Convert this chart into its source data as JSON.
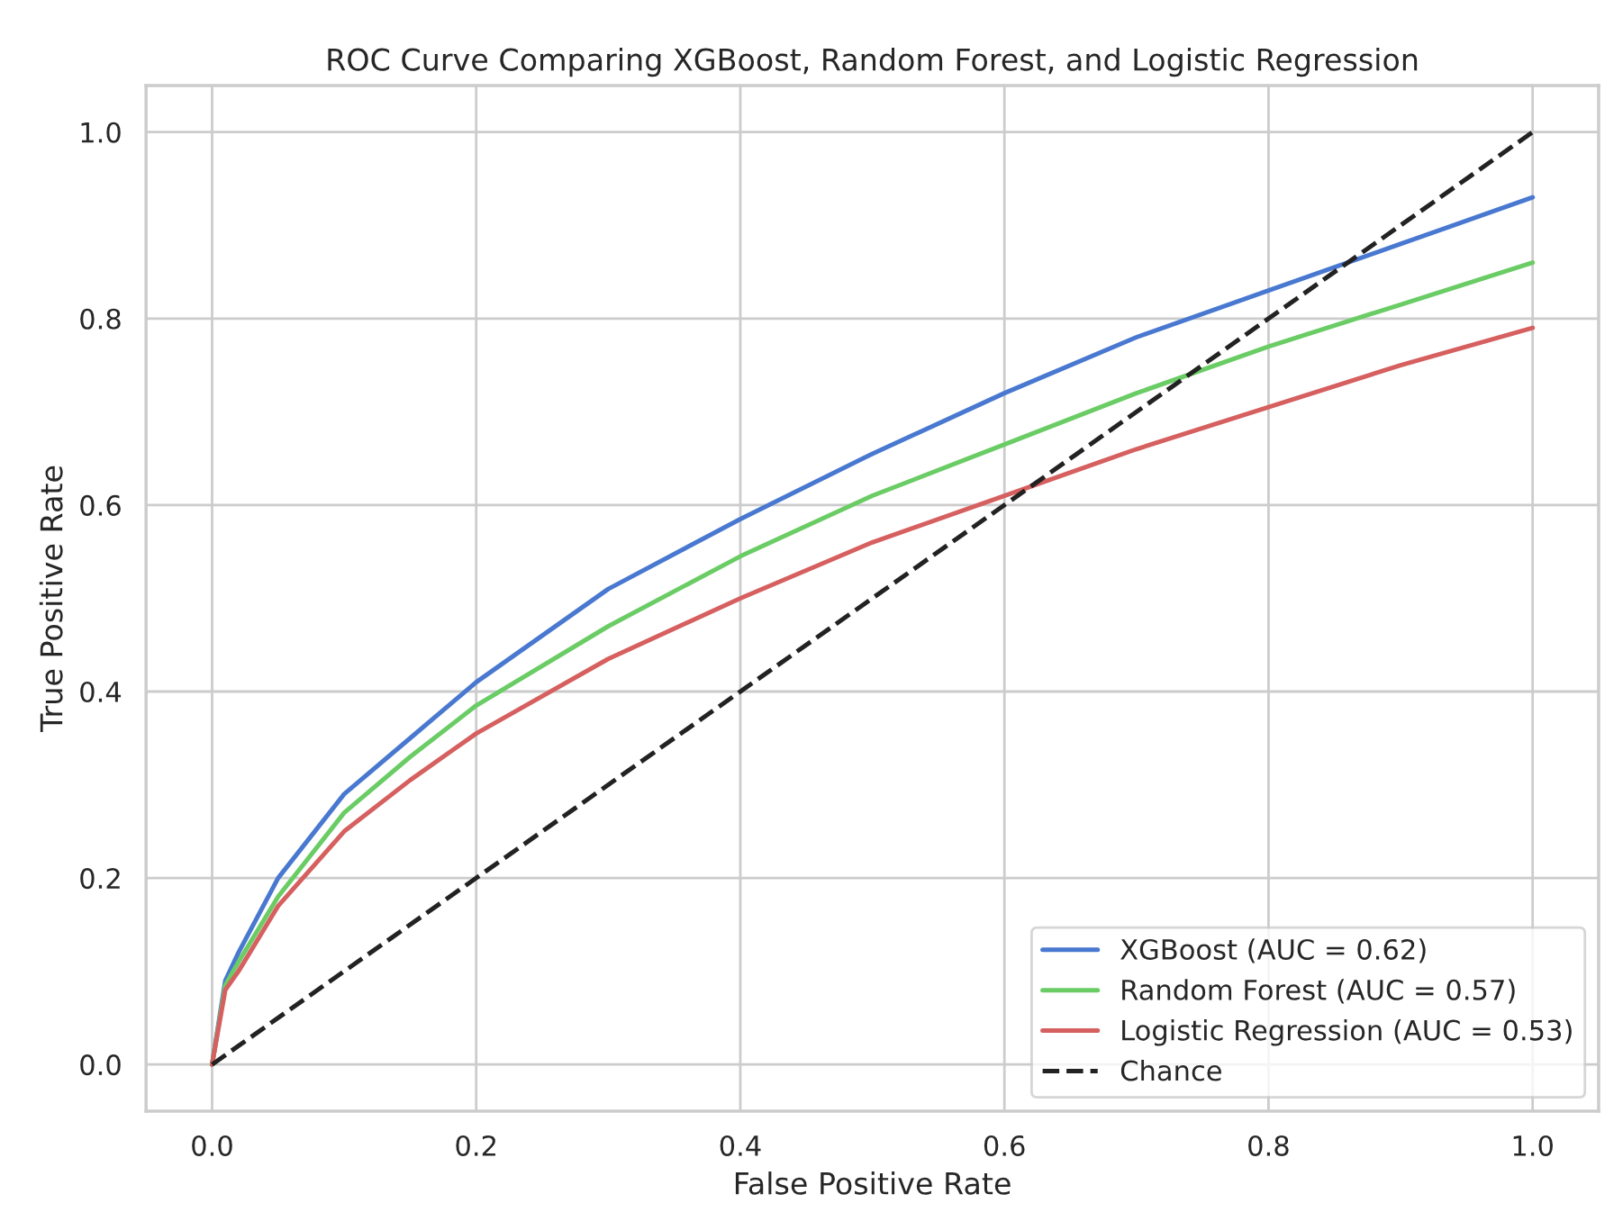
{
  "chart_data": {
    "type": "line",
    "title": "ROC Curve Comparing XGBoost, Random Forest, and Logistic Regression",
    "xlabel": "False Positive Rate",
    "ylabel": "True Positive Rate",
    "x": [
      0,
      0.01,
      0.02,
      0.05,
      0.1,
      0.15,
      0.2,
      0.3,
      0.4,
      0.5,
      0.6,
      0.7,
      0.8,
      0.9,
      1.0
    ],
    "series": [
      {
        "name": "XGBoost (AUC = 0.62)",
        "color": "#4878d0",
        "values": [
          0,
          0.09,
          0.12,
          0.2,
          0.29,
          0.35,
          0.41,
          0.51,
          0.585,
          0.655,
          0.72,
          0.78,
          0.83,
          0.88,
          0.93
        ]
      },
      {
        "name": "Random Forest (AUC = 0.57)",
        "color": "#6acc64",
        "values": [
          0,
          0.085,
          0.11,
          0.18,
          0.27,
          0.33,
          0.385,
          0.47,
          0.545,
          0.61,
          0.665,
          0.72,
          0.77,
          0.815,
          0.86
        ]
      },
      {
        "name": "Logistic Regression (AUC = 0.53)",
        "color": "#d65f5f",
        "values": [
          0,
          0.08,
          0.1,
          0.17,
          0.25,
          0.305,
          0.355,
          0.435,
          0.5,
          0.56,
          0.61,
          0.66,
          0.705,
          0.75,
          0.79
        ]
      },
      {
        "name": "Chance",
        "color": "#222222",
        "line_style": "dashed",
        "x": [
          0,
          1
        ],
        "values": [
          0,
          1
        ]
      }
    ],
    "xlim": [
      -0.05,
      1.05
    ],
    "ylim": [
      -0.05,
      1.05
    ],
    "xticks": [
      {
        "value": 0,
        "label": "0.0"
      },
      0.2,
      0.4,
      0.6,
      0.8,
      {
        "value": 1,
        "label": "1.0"
      }
    ],
    "yticks": [
      {
        "value": 0,
        "label": "0.0"
      },
      0.2,
      0.4,
      0.6,
      0.8,
      {
        "value": 1,
        "label": "1.0"
      }
    ],
    "grid": true,
    "legend": "bottom right"
  }
}
